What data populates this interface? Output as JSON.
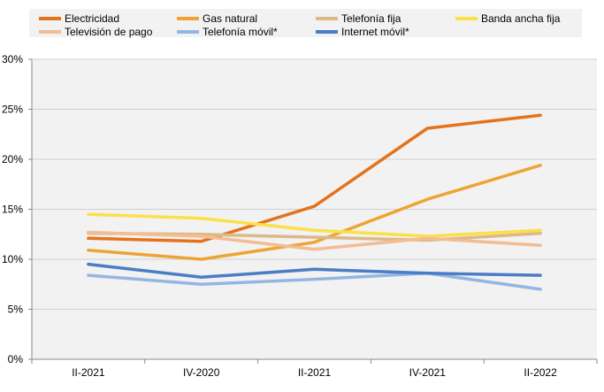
{
  "chart_data": {
    "type": "line",
    "categories": [
      "II-2021",
      "IV-2020",
      "II-2021",
      "IV-2021",
      "II-2022"
    ],
    "y_ticks": [
      "0%",
      "5%",
      "10%",
      "15%",
      "20%",
      "25%",
      "30%"
    ],
    "ylim": [
      0,
      30
    ],
    "grid": true,
    "legend_position": "top",
    "series": [
      {
        "name": "Electricidad",
        "color": "#E3731C",
        "values": [
          12.1,
          11.8,
          15.3,
          23.1,
          24.4
        ]
      },
      {
        "name": "Gas natural",
        "color": "#EEA434",
        "values": [
          10.9,
          10.0,
          11.7,
          16.0,
          19.4
        ]
      },
      {
        "name": "Telefonía fija",
        "color": "#DDB888",
        "values": [
          12.6,
          12.5,
          12.2,
          11.9,
          12.6
        ]
      },
      {
        "name": "Banda ancha fija",
        "color": "#FBE04A",
        "values": [
          14.5,
          14.1,
          12.9,
          12.3,
          12.9
        ]
      },
      {
        "name": "Televisión de pago",
        "color": "#F3BC93",
        "values": [
          12.7,
          12.3,
          11.0,
          12.1,
          11.4
        ]
      },
      {
        "name": "Telefonía móvil*",
        "color": "#95B6E2",
        "values": [
          8.4,
          7.5,
          8.0,
          8.6,
          7.0
        ]
      },
      {
        "name": "Internet móvil*",
        "color": "#4A7DC6",
        "values": [
          9.5,
          8.2,
          9.0,
          8.6,
          8.4
        ]
      }
    ]
  }
}
